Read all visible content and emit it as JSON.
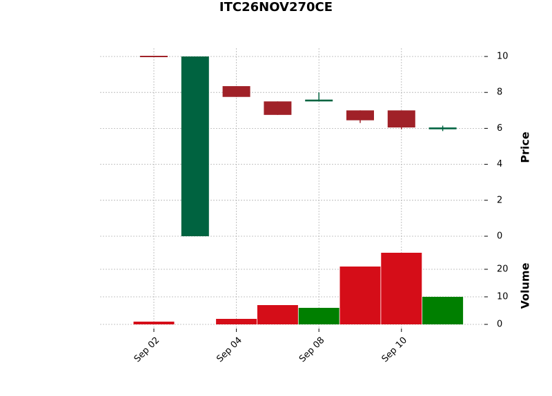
{
  "chart_data": {
    "type": "candlestick",
    "title": "ITC26NOV270CE",
    "categories": [
      "Sep 02",
      null,
      "Sep 04",
      null,
      "Sep 08",
      null,
      "Sep 10",
      null
    ],
    "open": [
      10,
      0,
      8.35,
      7.5,
      7.5,
      7.0,
      7.0,
      5.95
    ],
    "high": [
      10,
      10,
      8.35,
      7.5,
      8.0,
      7.0,
      7.0,
      6.15
    ],
    "low": [
      10,
      0,
      7.75,
      6.75,
      7.5,
      6.3,
      5.95,
      5.85
    ],
    "close": [
      10,
      10,
      7.75,
      6.75,
      7.6,
      6.45,
      6.05,
      6.05
    ],
    "volume": [
      1,
      0,
      2,
      7,
      6,
      21,
      26,
      10
    ],
    "up_color": "#006340",
    "down_color": "#a02128",
    "volume_up_color": "#007f00",
    "volume_down_color": "#d50d18",
    "ylabel": "Price",
    "ylim": [
      -0.46,
      10.46
    ],
    "yticks": [
      0,
      2,
      4,
      6,
      8,
      10
    ],
    "y2label": "Volume",
    "y2lim": [
      -1.5,
      28.25
    ],
    "y2ticks": [
      0,
      10,
      20
    ],
    "grid": true
  }
}
